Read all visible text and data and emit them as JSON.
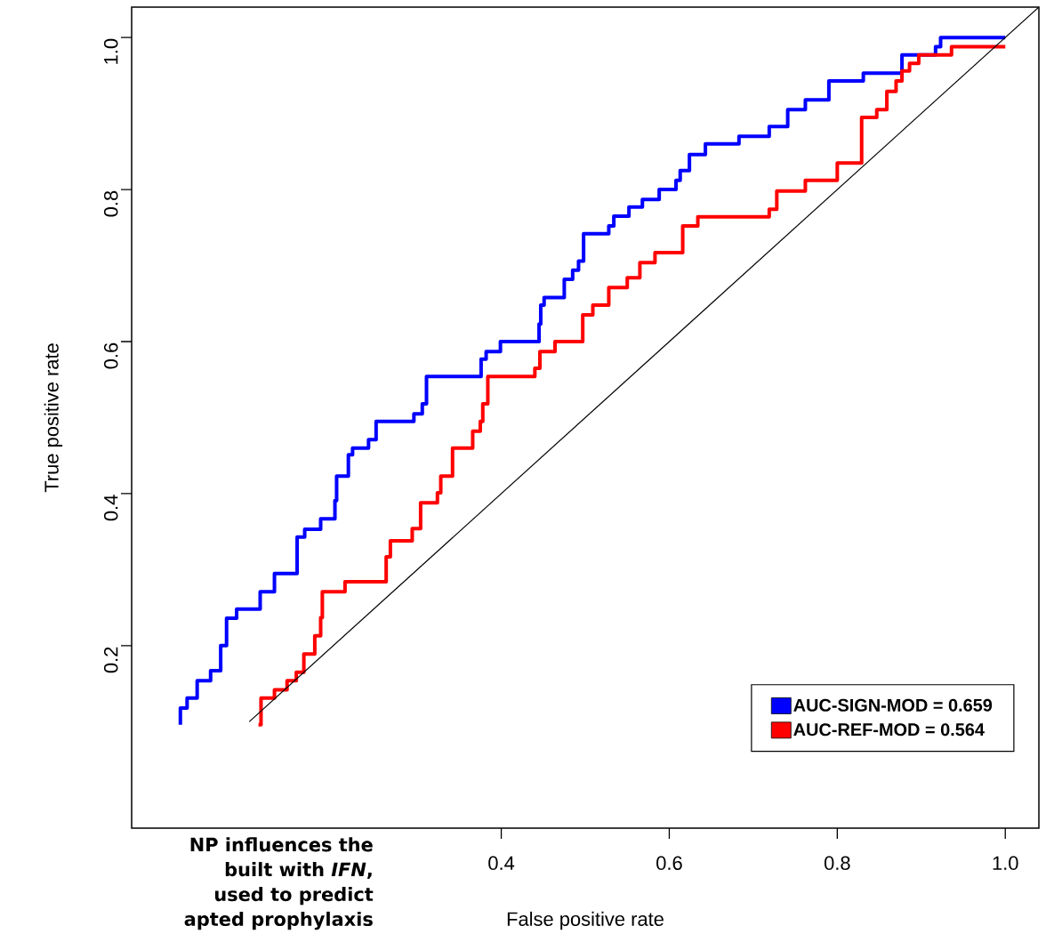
{
  "chart_data": {
    "type": "step",
    "xlabel": "False positive rate",
    "ylabel": "True positive rate",
    "xlim": [
      -0.04,
      1.04
    ],
    "ylim": [
      -0.04,
      1.04
    ],
    "xticks": [
      0.4,
      0.6,
      0.8,
      {
        "value": 1.0,
        "label": "1.0"
      }
    ],
    "yticks": [
      0.2,
      0.4,
      0.6,
      0.8,
      {
        "value": 1.0,
        "label": "1.0"
      }
    ],
    "legend": "bottom right",
    "series": [
      {
        "name": "AUC-SIGN-MOD = 0.659",
        "color": "#0000ff",
        "x": [
          0.018,
          0.018,
          0.026,
          0.038,
          0.054,
          0.066,
          0.073,
          0.085,
          0.113,
          0.13,
          0.157,
          0.166,
          0.185,
          0.202,
          0.204,
          0.218,
          0.223,
          0.242,
          0.251,
          0.296,
          0.306,
          0.311,
          0.376,
          0.382,
          0.399,
          0.445,
          0.447,
          0.451,
          0.475,
          0.485,
          0.492,
          0.498,
          0.528,
          0.534,
          0.552,
          0.568,
          0.588,
          0.608,
          0.613,
          0.624,
          0.643,
          0.683,
          0.719,
          0.741,
          0.762,
          0.79,
          0.831,
          0.877,
          0.917,
          0.923,
          1.0
        ],
        "values": [
          0.096,
          0.118,
          0.131,
          0.154,
          0.167,
          0.2,
          0.236,
          0.248,
          0.271,
          0.295,
          0.343,
          0.353,
          0.367,
          0.391,
          0.423,
          0.451,
          0.46,
          0.471,
          0.495,
          0.505,
          0.518,
          0.554,
          0.577,
          0.587,
          0.6,
          0.623,
          0.648,
          0.658,
          0.682,
          0.694,
          0.706,
          0.742,
          0.752,
          0.765,
          0.777,
          0.787,
          0.8,
          0.812,
          0.825,
          0.846,
          0.86,
          0.87,
          0.883,
          0.905,
          0.918,
          0.943,
          0.953,
          0.977,
          0.988,
          1.0,
          1.0
        ]
      },
      {
        "name": "AUC-REF-MOD = 0.564",
        "color": "#ff0000",
        "x": [
          0.111,
          0.114,
          0.13,
          0.145,
          0.156,
          0.165,
          0.178,
          0.185,
          0.187,
          0.214,
          0.263,
          0.268,
          0.294,
          0.304,
          0.324,
          0.328,
          0.342,
          0.366,
          0.375,
          0.378,
          0.384,
          0.44,
          0.446,
          0.464,
          0.497,
          0.509,
          0.528,
          0.55,
          0.565,
          0.583,
          0.616,
          0.634,
          0.719,
          0.728,
          0.762,
          0.8,
          0.829,
          0.847,
          0.859,
          0.87,
          0.877,
          0.886,
          0.897,
          0.936,
          1.0
        ],
        "values": [
          0.096,
          0.131,
          0.142,
          0.154,
          0.165,
          0.189,
          0.213,
          0.237,
          0.271,
          0.284,
          0.317,
          0.338,
          0.354,
          0.388,
          0.401,
          0.423,
          0.46,
          0.482,
          0.495,
          0.518,
          0.554,
          0.565,
          0.587,
          0.6,
          0.635,
          0.648,
          0.671,
          0.684,
          0.704,
          0.717,
          0.752,
          0.764,
          0.774,
          0.798,
          0.812,
          0.835,
          0.895,
          0.905,
          0.929,
          0.943,
          0.956,
          0.966,
          0.977,
          0.988,
          0.988
        ]
      },
      {
        "type": "line",
        "color": "#000000",
        "x": [
          0.1,
          1.04
        ],
        "values": [
          0.1,
          1.04
        ]
      }
    ],
    "annotations": [
      "NP influences the",
      "built with *IFN*,",
      "used to predict",
      "apted prophylaxis"
    ]
  }
}
